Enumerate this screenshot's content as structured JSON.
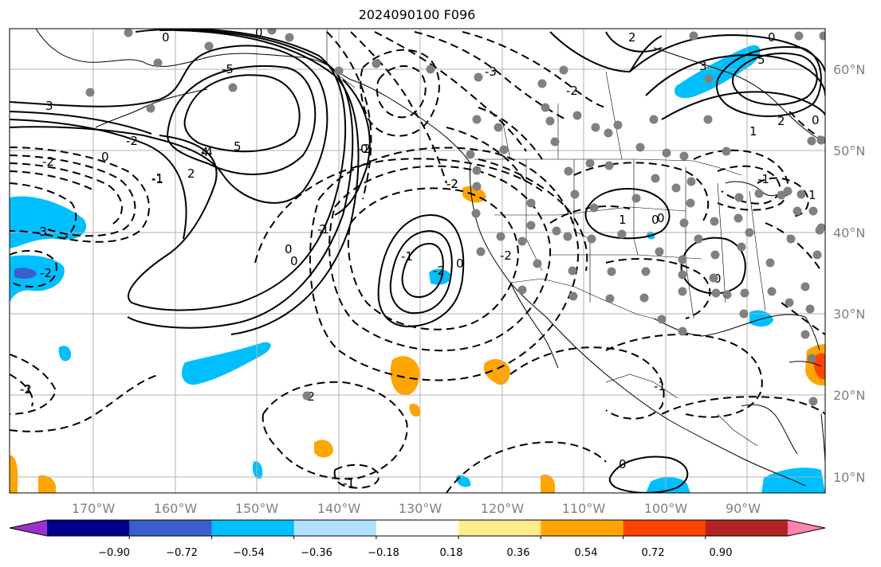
{
  "title": "2024090100 F096",
  "axes": {
    "lon_ticks": [
      "170°W",
      "160°W",
      "150°W",
      "140°W",
      "130°W",
      "120°W",
      "110°W",
      "100°W",
      "90°W"
    ],
    "lat_ticks": [
      "60°N",
      "50°N",
      "40°N",
      "30°N",
      "20°N",
      "10°N"
    ]
  },
  "colorbar": {
    "labels": [
      "−0.90",
      "−0.72",
      "−0.54",
      "−0.36",
      "−0.18",
      "0.18",
      "0.36",
      "0.54",
      "0.72",
      "0.90"
    ],
    "colors": [
      "#9932cc",
      "#00008b",
      "#3a5fcd",
      "#00bfff",
      "#b0e2ff",
      "#ffffff",
      "#ffec8b",
      "#ffa500",
      "#ff4500",
      "#b22222",
      "#ff82ab"
    ]
  },
  "contour_labels": [
    "0",
    "0",
    "-5",
    "3",
    "-2",
    "-3",
    "-2",
    "-1",
    "0",
    "0",
    "2",
    "-2",
    "2",
    "-1",
    "-4",
    "5",
    "4",
    "-2",
    "-2",
    "-3",
    "-2",
    "-1",
    "-2",
    "0",
    "1",
    "0",
    "0",
    "-1",
    "-2",
    "-2",
    "-2",
    "-1",
    "0",
    "2",
    "3",
    "5",
    "2",
    "1",
    "0",
    "0",
    "1",
    "-1",
    "0",
    "-1",
    "0",
    "-1",
    "0",
    "-1",
    "-2"
  ],
  "colors": {
    "positive_contour": "#000000",
    "negative_contour": "#000000",
    "gridline": "#b0b0b0",
    "coastline": "#000000",
    "station": "#808080"
  }
}
